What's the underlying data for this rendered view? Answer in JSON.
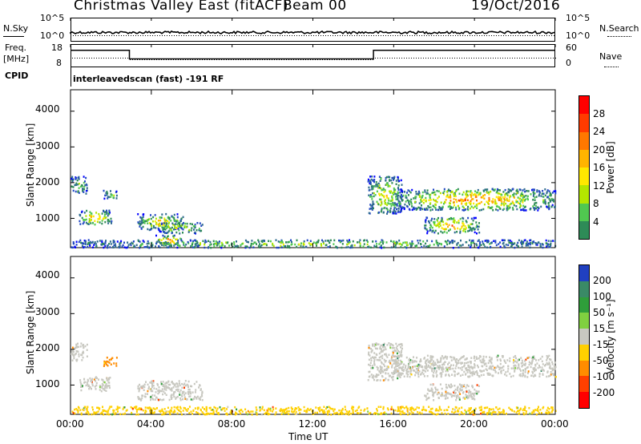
{
  "header": {
    "title": "Christmas Valley East (fitACF)",
    "beam": "Beam 00",
    "date": "19/Oct/2016"
  },
  "top_panels": {
    "nsky_label": "N.Sky",
    "nsearch_label": "N.Search",
    "nsky_ticks": [
      "10^5",
      "10^0"
    ],
    "nsearch_ticks": [
      "10^5",
      "10^0"
    ],
    "freq_label": "Freq.",
    "freq_unit": "[MHz]",
    "freq_ticks": [
      "18",
      "8"
    ],
    "nave_label": "Nave",
    "nave_ticks": [
      "60",
      "0"
    ],
    "cpid_label": "CPID",
    "cpid_text": "interleavedscan (fast) -191 RF"
  },
  "power_panel": {
    "ylabel": "Slant Range [km]",
    "yticks": [
      "4000",
      "3000",
      "2000",
      "1000"
    ],
    "colorbar_label": "Power [dB]",
    "colorbar_ticks": [
      "28",
      "24",
      "20",
      "16",
      "12",
      "8",
      "4"
    ],
    "colors": [
      "#ff0000",
      "#ff3b00",
      "#ff7800",
      "#ffb400",
      "#ffe800",
      "#b4e600",
      "#50c850",
      "#2e8b57",
      "#2f6b8f",
      "#2248c4",
      "#0000ff"
    ]
  },
  "velocity_panel": {
    "ylabel": "Slant Range [km]",
    "yticks": [
      "4000",
      "3000",
      "2000",
      "1000"
    ],
    "colorbar_label": "Velocity [m s⁻¹]",
    "colorbar_ticks": [
      "200",
      "100",
      "50",
      "15",
      "-15",
      "-50",
      "-100",
      "-200"
    ],
    "colors": [
      "#2040c0",
      "#3a8a66",
      "#2f9e3a",
      "#80d040",
      "#c8c8c0",
      "#ffd000",
      "#ff8c00",
      "#ff4000",
      "#ff0000"
    ]
  },
  "x_axis": {
    "label": "Time UT",
    "ticks": [
      "00:00",
      "04:00",
      "08:00",
      "12:00",
      "16:00",
      "20:00",
      "00:00"
    ]
  },
  "chart_data": [
    {
      "type": "line",
      "name": "frequency",
      "x": [
        "00:00",
        "02:55",
        "02:55",
        "15:00",
        "15:00",
        "24:00"
      ],
      "y": [
        15.5,
        15.5,
        11.5,
        11.5,
        15.5,
        15.5
      ],
      "ylim": [
        8,
        18
      ]
    },
    {
      "type": "heatmap",
      "title": "Power [dB]",
      "xlabel": "Time UT",
      "ylabel": "Slant Range [km]",
      "xlim": [
        0,
        24
      ],
      "ylim": [
        180,
        4600
      ],
      "regions": [
        {
          "t": [
            0.0,
            0.8
          ],
          "r": [
            1700,
            2200
          ],
          "p": 10
        },
        {
          "t": [
            0.4,
            2.0
          ],
          "r": [
            850,
            1250
          ],
          "p": 20
        },
        {
          "t": [
            1.6,
            2.3
          ],
          "r": [
            1550,
            1800
          ],
          "p": 12
        },
        {
          "t": [
            3.3,
            5.6
          ],
          "r": [
            700,
            1150
          ],
          "p": 18
        },
        {
          "t": [
            4.3,
            6.5
          ],
          "r": [
            600,
            900
          ],
          "p": 16
        },
        {
          "t": [
            4.2,
            5.5
          ],
          "r": [
            250,
            550
          ],
          "p": 22
        },
        {
          "t": [
            14.7,
            16.4
          ],
          "r": [
            1150,
            2200
          ],
          "p": 16
        },
        {
          "t": [
            16.0,
            24.0
          ],
          "r": [
            1250,
            1850
          ],
          "p": 22
        },
        {
          "t": [
            17.5,
            20.2
          ],
          "r": [
            600,
            1050
          ],
          "p": 22
        },
        {
          "t": [
            0.0,
            24.0
          ],
          "r": [
            200,
            420
          ],
          "p": 12
        }
      ]
    },
    {
      "type": "heatmap",
      "title": "Velocity [m s⁻¹]",
      "xlabel": "Time UT",
      "ylabel": "Slant Range [km]",
      "xlim": [
        0,
        24
      ],
      "ylim": [
        180,
        4600
      ],
      "regions": [
        {
          "t": [
            0.0,
            0.8
          ],
          "r": [
            1700,
            2200
          ],
          "v": 0
        },
        {
          "t": [
            0.4,
            2.0
          ],
          "r": [
            850,
            1250
          ],
          "v": 0
        },
        {
          "t": [
            1.6,
            2.3
          ],
          "r": [
            1550,
            1800
          ],
          "v": -80
        },
        {
          "t": [
            3.3,
            6.5
          ],
          "r": [
            600,
            1150
          ],
          "v": 0
        },
        {
          "t": [
            14.7,
            16.4
          ],
          "r": [
            1150,
            2200
          ],
          "v": 0
        },
        {
          "t": [
            16.0,
            24.0
          ],
          "r": [
            1250,
            1850
          ],
          "v": 0
        },
        {
          "t": [
            17.5,
            20.2
          ],
          "r": [
            600,
            1050
          ],
          "v": 0
        },
        {
          "t": [
            0.0,
            24.0
          ],
          "r": [
            200,
            420
          ],
          "v": -30
        }
      ]
    }
  ]
}
